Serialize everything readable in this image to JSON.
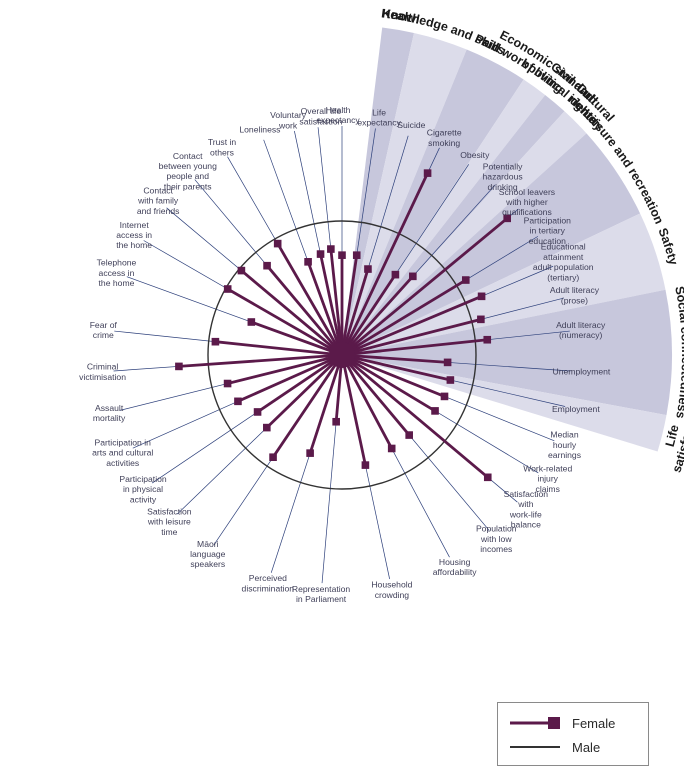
{
  "chart_data": {
    "type": "radar",
    "title": "",
    "domains": [
      {
        "name": "Health",
        "lines": [
          "Health"
        ],
        "start": 7,
        "end": 12.6,
        "shade": "dark"
      },
      {
        "name": "Knowledge and skills",
        "lines": [
          "Knowledge and skills"
        ],
        "start": 12.6,
        "end": 22.2,
        "shade": "light"
      },
      {
        "name": "Paid work",
        "lines": [
          "Paid work"
        ],
        "start": 22.2,
        "end": 33.4,
        "shade": "dark"
      },
      {
        "name": "Economic standard of living",
        "lines": [
          "Economic standard",
          "of living"
        ],
        "start": 33.4,
        "end": 38.0,
        "shade": "light"
      },
      {
        "name": "Civil and political rights",
        "lines": [
          "Civil and",
          "political rights"
        ],
        "start": 38.0,
        "end": 42.4,
        "shade": "dark"
      },
      {
        "name": "Cultural identity",
        "lines": [
          "Cultural",
          "identity"
        ],
        "start": 42.4,
        "end": 47.8,
        "shade": "light"
      },
      {
        "name": "Leisure and recreation",
        "lines": [
          "Leisure and recreation"
        ],
        "start": 47.8,
        "end": 64.6,
        "shade": "dark"
      },
      {
        "name": "Safety",
        "lines": [
          "Safety"
        ],
        "start": 64.6,
        "end": 78.6,
        "shade": "light"
      },
      {
        "name": "Social connectedness",
        "lines": [
          "Social connectedness"
        ],
        "start": 78.6,
        "end": 100.5,
        "shade": "dark"
      },
      {
        "name": "Life satisfaction",
        "lines": [
          "Life",
          "satisfaction"
        ],
        "start": 100.5,
        "end": 107,
        "shade": "light"
      }
    ],
    "indicators": [
      {
        "label": "Health expectancy",
        "lines": [
          "Health",
          "expectancy"
        ],
        "angle": 0,
        "female": 0.745,
        "label_offset": -4
      },
      {
        "label": "Life expectancy",
        "lines": [
          "Life",
          "expectancy"
        ],
        "angle": 8.4,
        "female": 0.753,
        "label_offset": 2
      },
      {
        "label": "Suicide",
        "lines": [
          "Suicide"
        ],
        "angle": 16.8,
        "female": 0.67
      },
      {
        "label": "Cigarette smoking",
        "lines": [
          "Cigarette",
          "smoking"
        ],
        "angle": 25.2,
        "female": 1.5
      },
      {
        "label": "Obesity",
        "lines": [
          "Obesity"
        ],
        "angle": 33.6,
        "female": 0.72
      },
      {
        "label": "Potentially hazardous drinking",
        "lines": [
          "Potentially",
          "hazardous",
          "drinking"
        ],
        "angle": 42,
        "female": 0.79
      },
      {
        "label": "School leavers with higher qualifications",
        "lines": [
          "School leavers",
          "with higher",
          "qualifications"
        ],
        "angle": 50.4,
        "female": 1.6
      },
      {
        "label": "Participation in tertiary education",
        "lines": [
          "Participation",
          "in tertiary",
          "education"
        ],
        "angle": 58.8,
        "female": 1.08
      },
      {
        "label": "Educational attainment adult population (tertiary)",
        "lines": [
          "Educational",
          "attainment",
          "adult population",
          "(tertiary)"
        ],
        "angle": 67.2,
        "female": 1.13
      },
      {
        "label": "Adult literacy (prose)",
        "lines": [
          "Adult literacy",
          "(prose)"
        ],
        "angle": 75.6,
        "female": 1.07
      },
      {
        "label": "Adult literacy (numeracy)",
        "lines": [
          "Adult literacy",
          "(numeracy)"
        ],
        "angle": 84,
        "female": 1.09
      },
      {
        "label": "Unemployment",
        "lines": [
          "Unemployment"
        ],
        "angle": 94,
        "female": 0.79
      },
      {
        "label": "Employment",
        "lines": [
          "Employment"
        ],
        "angle": 103,
        "female": 0.83
      },
      {
        "label": "Median hourly earnings",
        "lines": [
          "Median",
          "hourly",
          "earnings"
        ],
        "angle": 112,
        "female": 0.825
      },
      {
        "label": "Work-related injury claims",
        "lines": [
          "Work-related",
          "injury",
          "claims"
        ],
        "angle": 121,
        "female": 0.81
      },
      {
        "label": "Satisfaction with work-life balance",
        "lines": [
          "Satisfaction",
          "with",
          "work-life",
          "balance"
        ],
        "angle": 130,
        "female": 1.42
      },
      {
        "label": "Population with low incomes",
        "lines": [
          "Population",
          "with low",
          "incomes"
        ],
        "angle": 140,
        "female": 0.78
      },
      {
        "label": "Housing affordability",
        "lines": [
          "Housing",
          "affordability"
        ],
        "angle": 152,
        "female": 0.79
      },
      {
        "label": "Household crowding",
        "lines": [
          "Household",
          "crowding"
        ],
        "angle": 168,
        "female": 0.84
      },
      {
        "label": "Representation in Parliament",
        "lines": [
          "Representation",
          "in Parliament"
        ],
        "angle": 185,
        "female": 0.5
      },
      {
        "label": "Perceived discrimination",
        "lines": [
          "Perceived",
          "discrimination"
        ],
        "angle": 198,
        "female": 0.77
      },
      {
        "label": "Māori language speakers",
        "lines": [
          "Māori",
          "language",
          "speakers"
        ],
        "angle": 214,
        "female": 0.92
      },
      {
        "label": "Satisfaction with leisure time",
        "lines": [
          "Satisfaction",
          "with leisure",
          "time"
        ],
        "angle": 226,
        "female": 0.78
      },
      {
        "label": "Participation in physical activity",
        "lines": [
          "Participation",
          "in physical",
          "activity"
        ],
        "angle": 236,
        "female": 0.76
      },
      {
        "label": "Participation in arts and cultural activities",
        "lines": [
          "Participation in",
          "arts and cultural",
          "activities"
        ],
        "angle": 246,
        "female": 0.85
      },
      {
        "label": "Assault mortality",
        "lines": [
          "Assault",
          "mortality"
        ],
        "angle": 256,
        "female": 0.88
      },
      {
        "label": "Criminal victimisation",
        "lines": [
          "Criminal",
          "victimisation"
        ],
        "angle": 266,
        "female": 1.22
      },
      {
        "label": "Fear of crime",
        "lines": [
          "Fear of",
          "crime"
        ],
        "angle": 276,
        "female": 0.95
      },
      {
        "label": "Telephone access in the home",
        "lines": [
          "Telephone",
          "access in",
          "the home"
        ],
        "angle": 290,
        "female": 0.72
      },
      {
        "label": "Internet access in the home",
        "lines": [
          "Internet",
          "access in",
          "the home"
        ],
        "angle": 300,
        "female": 0.985
      },
      {
        "label": "Contact with family and friends",
        "lines": [
          "Contact",
          "with family",
          "and friends"
        ],
        "angle": 310,
        "female": 0.98
      },
      {
        "label": "Contact between young people and their parents",
        "lines": [
          "Contact",
          "between young",
          "people and",
          "their parents"
        ],
        "angle": 320,
        "female": 0.87
      },
      {
        "label": "Trust in others",
        "lines": [
          "Trust in",
          "others"
        ],
        "angle": 330,
        "female": 0.96
      },
      {
        "label": "Loneliness",
        "lines": [
          "Loneliness"
        ],
        "angle": 340,
        "female": 0.74
      },
      {
        "label": "Voluntary work",
        "lines": [
          "Voluntary",
          "work"
        ],
        "angle": 348,
        "female": 0.77,
        "label_offset": -4
      },
      {
        "label": "Overall life satisfaction",
        "lines": [
          "Overall life",
          "satisfaction"
        ],
        "angle": 354,
        "female": 0.795,
        "label_offset": 4
      }
    ],
    "reference": {
      "male": 1.0
    },
    "series": [
      {
        "name": "Female",
        "color": "#5b1a4a"
      },
      {
        "name": "Male",
        "color": "#333333"
      }
    ],
    "legend_position": "bottom-right",
    "colors": {
      "dark": "#c7c7dc",
      "light": "#dcdcea",
      "axis": "#2c3f7a",
      "female": "#5b1a4a",
      "male": "#333333"
    }
  }
}
